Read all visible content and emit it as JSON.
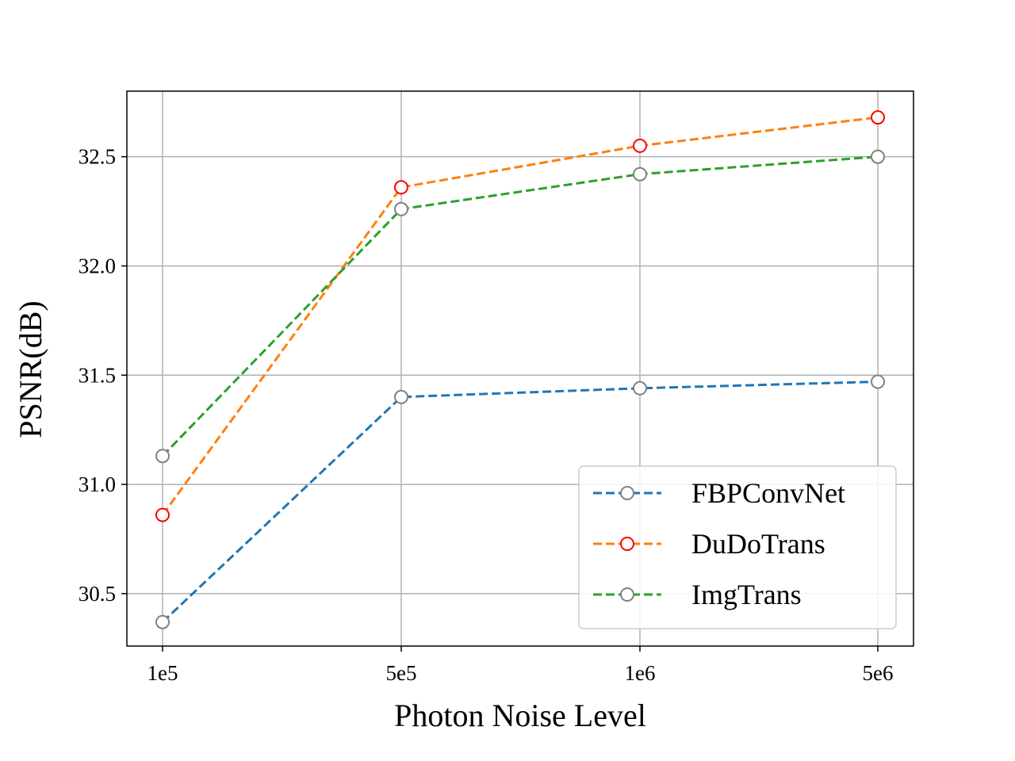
{
  "chart_data": {
    "type": "line",
    "title": "",
    "xlabel": "Photon Noise Level",
    "ylabel": "PSNR(dB)",
    "categories": [
      "1e5",
      "5e5",
      "1e6",
      "5e6"
    ],
    "ylim": [
      30.26,
      32.8
    ],
    "yticks": [
      30.5,
      31.0,
      31.5,
      32.0,
      32.5
    ],
    "ytick_labels": [
      "30.5",
      "31.0",
      "31.5",
      "32.0",
      "32.5"
    ],
    "grid": true,
    "legend_position": "bottom-right",
    "series": [
      {
        "name": "FBPConvNet",
        "color": "#1f77b4",
        "marker_edge": "#808080",
        "values": [
          30.37,
          31.4,
          31.44,
          31.47
        ]
      },
      {
        "name": "DuDoTrans",
        "color": "#ff7f0e",
        "marker_edge": "#ff0000",
        "values": [
          30.86,
          32.36,
          32.55,
          32.68
        ]
      },
      {
        "name": "ImgTrans",
        "color": "#2ca02c",
        "marker_edge": "#808080",
        "values": [
          31.13,
          32.26,
          32.42,
          32.5
        ]
      }
    ]
  }
}
